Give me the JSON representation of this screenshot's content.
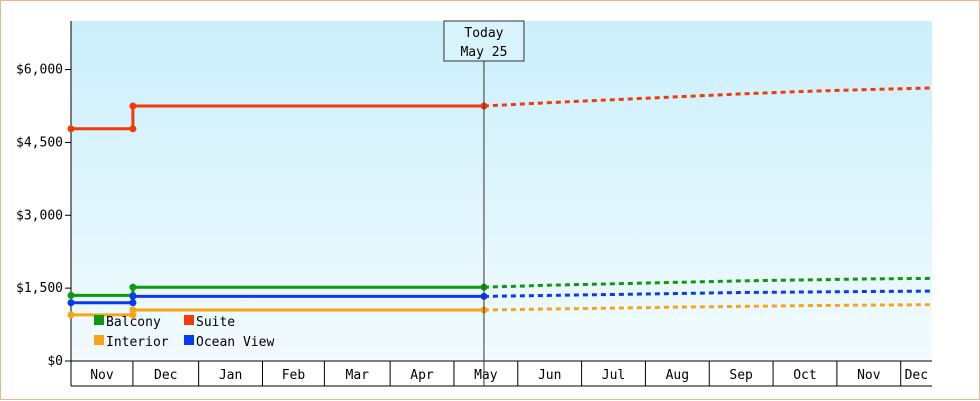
{
  "chart_data": {
    "type": "line",
    "today": {
      "label": "Today",
      "date": "May 25",
      "date_index": 6.47
    },
    "x_axis": {
      "months": [
        "Nov",
        "Dec",
        "Jan",
        "Feb",
        "Mar",
        "Apr",
        "May",
        "Jun",
        "Jul",
        "Aug",
        "Sep",
        "Oct",
        "Nov",
        "Dec"
      ],
      "month_start_index": [
        0,
        0.97,
        2.0,
        3.0,
        3.97,
        5.0,
        6.0,
        7.0,
        8.0,
        9.0,
        10.0,
        11.0,
        12.0,
        13.0
      ],
      "range_index": [
        0,
        13.49
      ]
    },
    "y_axis": {
      "ticks": [
        0,
        1500,
        3000,
        4500,
        6000
      ],
      "tick_labels": [
        "$0",
        "$1,500",
        "$3,000",
        "$4,500",
        "$6,000"
      ],
      "ylim": [
        0,
        7000
      ]
    },
    "colors": {
      "plot_top": "#cbeffb",
      "plot_bottom": "#f2fbfe",
      "frame_border": "#e8b98c"
    },
    "legend": {
      "placement": "bottom-left"
    },
    "series": [
      {
        "name": "Balcony",
        "color": "#0a9a0a",
        "actual": [
          [
            0,
            1350
          ],
          [
            0.97,
            1350
          ],
          [
            0.97,
            1520
          ],
          [
            6.47,
            1520
          ]
        ],
        "points": [
          [
            0,
            1350
          ],
          [
            0.97,
            1350
          ],
          [
            0.97,
            1520
          ],
          [
            6.47,
            1520
          ]
        ],
        "forecast": [
          [
            6.47,
            1520
          ],
          [
            7.5,
            1560
          ],
          [
            8.5,
            1590
          ],
          [
            9.5,
            1620
          ],
          [
            10.5,
            1650
          ],
          [
            11.5,
            1670
          ],
          [
            12.5,
            1690
          ],
          [
            13.49,
            1700
          ]
        ]
      },
      {
        "name": "Suite",
        "color": "#f03a0a",
        "actual": [
          [
            0,
            4780
          ],
          [
            0.97,
            4780
          ],
          [
            0.97,
            5250
          ],
          [
            6.47,
            5250
          ]
        ],
        "points": [
          [
            0,
            4780
          ],
          [
            0.97,
            4780
          ],
          [
            0.97,
            5250
          ],
          [
            6.47,
            5250
          ]
        ],
        "forecast": [
          [
            6.47,
            5250
          ],
          [
            7.5,
            5320
          ],
          [
            8.5,
            5380
          ],
          [
            9.5,
            5440
          ],
          [
            10.5,
            5500
          ],
          [
            11.5,
            5550
          ],
          [
            12.5,
            5590
          ],
          [
            13.49,
            5620
          ]
        ]
      },
      {
        "name": "Interior",
        "color": "#f7a516",
        "actual": [
          [
            0,
            950
          ],
          [
            0.97,
            950
          ],
          [
            0.97,
            1050
          ],
          [
            6.47,
            1050
          ]
        ],
        "points": [
          [
            0,
            950
          ],
          [
            0.97,
            950
          ],
          [
            0.97,
            1050
          ],
          [
            6.47,
            1050
          ]
        ],
        "forecast": [
          [
            6.47,
            1050
          ],
          [
            7.5,
            1070
          ],
          [
            8.5,
            1090
          ],
          [
            9.5,
            1110
          ],
          [
            10.5,
            1125
          ],
          [
            11.5,
            1140
          ],
          [
            12.5,
            1150
          ],
          [
            13.49,
            1160
          ]
        ]
      },
      {
        "name": "Ocean View",
        "color": "#0a3af0",
        "actual": [
          [
            0,
            1200
          ],
          [
            0.97,
            1200
          ],
          [
            0.97,
            1330
          ],
          [
            6.47,
            1330
          ]
        ],
        "points": [
          [
            0,
            1200
          ],
          [
            0.97,
            1200
          ],
          [
            0.97,
            1330
          ],
          [
            6.47,
            1330
          ]
        ],
        "forecast": [
          [
            6.47,
            1330
          ],
          [
            7.5,
            1350
          ],
          [
            8.5,
            1370
          ],
          [
            9.5,
            1390
          ],
          [
            10.5,
            1410
          ],
          [
            11.5,
            1420
          ],
          [
            12.5,
            1430
          ],
          [
            13.49,
            1440
          ]
        ]
      }
    ]
  }
}
